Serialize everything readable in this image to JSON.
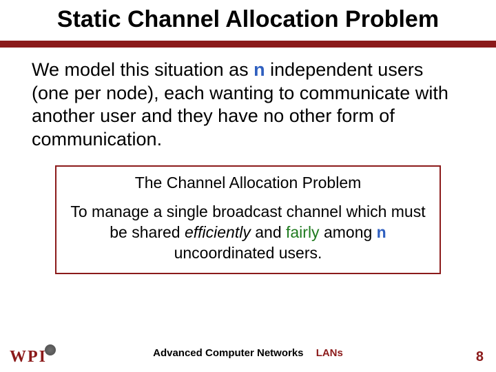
{
  "title": "Static Channel Allocation Problem",
  "body": {
    "pre_n": "We model this situation as ",
    "n": "n",
    "post_n": " independent users (one per node), each wanting to communicate with another user and they have no other form of communication."
  },
  "box": {
    "heading": "The Channel Allocation Problem",
    "line1": "To manage a single broadcast channel which must be shared ",
    "efficiently": "efficiently",
    "and": " and ",
    "fairly": "fairly",
    "line2a": " among ",
    "n": "n",
    "line2b": " uncoordinated users."
  },
  "footer": {
    "course": "Advanced Computer Networks",
    "topic": "LANs",
    "page": "8"
  },
  "logo": {
    "w": "W",
    "p": "P",
    "i": "I"
  },
  "colors": {
    "accent": "#8b1a1a",
    "n_color": "#2f5fbf",
    "fairly": "#1f7a1f"
  }
}
